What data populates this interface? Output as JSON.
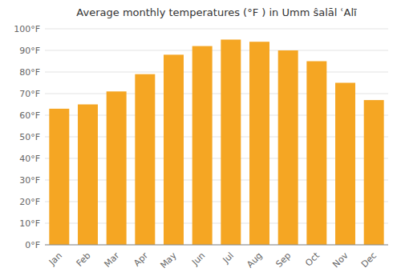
{
  "chart_data": {
    "type": "bar",
    "title": "Average monthly temperatures (°F ) in Umm ŝalāl ʿAlī",
    "categories": [
      "Jan",
      "Feb",
      "Mar",
      "Apr",
      "May",
      "Jun",
      "Jul",
      "Aug",
      "Sep",
      "Oct",
      "Nov",
      "Dec"
    ],
    "values": [
      63,
      65,
      71,
      79,
      88,
      92,
      95,
      94,
      90,
      85,
      75,
      67
    ],
    "color": "#F5A623",
    "ylim": [
      0,
      100
    ],
    "yticks": [
      {
        "value": 0,
        "label": "0°F"
      },
      {
        "value": 10,
        "label": "10°F"
      },
      {
        "value": 20,
        "label": "20°F"
      },
      {
        "value": 30,
        "label": "30°F"
      },
      {
        "value": 40,
        "label": "40°F"
      },
      {
        "value": 50,
        "label": "50°F"
      },
      {
        "value": 60,
        "label": "60°F"
      },
      {
        "value": 70,
        "label": "70°F"
      },
      {
        "value": 80,
        "label": "80°F"
      },
      {
        "value": 90,
        "label": "90°F"
      },
      {
        "value": 100,
        "label": "100°F"
      }
    ],
    "grid": true
  }
}
